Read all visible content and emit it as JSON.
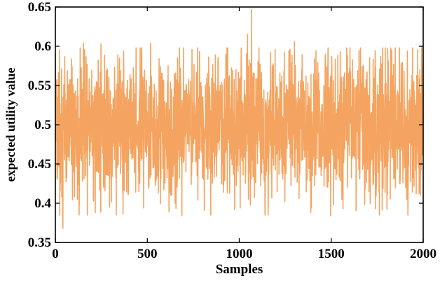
{
  "chart_data": {
    "type": "line",
    "title": "",
    "xlabel": "Samples",
    "ylabel": "expected utility value",
    "xlim": [
      0,
      2000
    ],
    "ylim": [
      0.35,
      0.65
    ],
    "xticks": [
      0,
      500,
      1000,
      1500,
      2000
    ],
    "xtick_labels": [
      "0",
      "500",
      "1000",
      "1500",
      "2000"
    ],
    "yticks": [
      0.35,
      0.4,
      0.45,
      0.5,
      0.55,
      0.6,
      0.65
    ],
    "ytick_labels": [
      "0.35",
      "0.4",
      "0.45",
      "0.5",
      "0.55",
      "0.6",
      "0.65"
    ],
    "grid": false,
    "legend": "none",
    "box": true,
    "series": [
      {
        "color": "#F4A460",
        "n_samples": 2000,
        "mean": 0.5,
        "typical_range": [
          0.45,
          0.55
        ],
        "x": [
          0,
          12,
          41,
          88,
          153,
          217,
          248,
          262,
          283,
          295,
          340,
          355,
          470,
          480,
          518,
          560,
          575,
          618,
          680,
          688,
          754,
          810,
          870,
          935,
          963,
          1005,
          1045,
          1060,
          1067,
          1088,
          1195,
          1248,
          1300,
          1392,
          1467,
          1497,
          1588,
          1615,
          1684,
          1740,
          1763,
          1805,
          1970,
          1985,
          1992,
          2000
        ],
        "y": [
          0.59,
          0.46,
          0.368,
          0.584,
          0.604,
          0.388,
          0.603,
          0.426,
          0.571,
          0.395,
          0.589,
          0.438,
          0.589,
          0.394,
          0.604,
          0.413,
          0.566,
          0.389,
          0.572,
          0.384,
          0.577,
          0.391,
          0.589,
          0.413,
          0.569,
          0.394,
          0.615,
          0.398,
          0.647,
          0.428,
          0.596,
          0.402,
          0.606,
          0.394,
          0.582,
          0.384,
          0.588,
          0.583,
          0.417,
          0.393,
          0.571,
          0.411,
          0.596,
          0.41,
          0.6,
          0.5
        ]
      }
    ]
  }
}
